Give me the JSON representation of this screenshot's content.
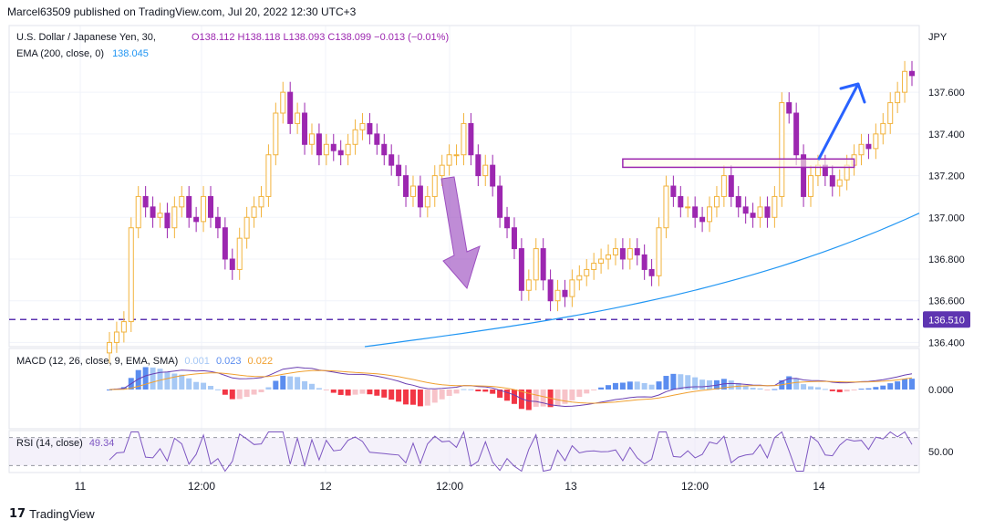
{
  "header": {
    "publisher": "Marcel63509 published on TradingView.com, Jul 20, 2022 12:30 UTC+3"
  },
  "footer": {
    "brand": "TradingView"
  },
  "legend": {
    "symbol": "U.S. Dollar / Japanese Yen, 30,",
    "ohlc": "O138.112  H138.118  L138.093  C138.099  −0.013 (−0.01%)",
    "ema_label": "EMA (200, close, 0)",
    "ema_value": "138.045",
    "macd_label": "MACD (12, 26, close, 9, EMA, SMA)",
    "macd_values": [
      "0.001",
      "0.023",
      "0.022"
    ],
    "rsi_label": "RSI (14, close)",
    "rsi_value": "49.34"
  },
  "colors": {
    "up": "#f2b33c",
    "down": "#9c27b0",
    "ema": "#2196f3",
    "dashed_level": "#5e35b1",
    "macd_pos_strong": "#5b8def",
    "macd_pos_weak": "#a6c8f5",
    "macd_neg_strong": "#f23645",
    "macd_neg_weak": "#f7c3c9",
    "macd_line": "#6a3fb1",
    "signal_line": "#f0a030",
    "rsi_line": "#7e57c2",
    "arrow_purple": "#9c4fc0",
    "arrow_blue": "#2962ff"
  },
  "chart_data": {
    "type": "candlestick",
    "title": "U.S. Dollar / Japanese Yen, 30",
    "currency": "JPY",
    "price_axis": {
      "ylim": [
        136.38,
        137.92
      ],
      "ticks": [
        "137.600",
        "137.400",
        "137.200",
        "137.000",
        "136.800",
        "136.600",
        "136.400"
      ]
    },
    "x_ticks": [
      "11",
      "12:00",
      "12",
      "12:00",
      "13",
      "12:00",
      "14"
    ],
    "level_label": "136.510",
    "level_value": 136.51,
    "macd_tick": "0.000",
    "rsi_tick": "50.00",
    "candles_close": [
      136.4,
      136.45,
      136.5,
      136.95,
      137.1,
      137.05,
      137.0,
      137.02,
      136.95,
      137.05,
      137.1,
      137.0,
      136.98,
      137.1,
      137.0,
      136.95,
      136.8,
      136.75,
      136.9,
      137.0,
      137.05,
      137.1,
      137.3,
      137.5,
      137.6,
      137.45,
      137.5,
      137.35,
      137.4,
      137.3,
      137.35,
      137.32,
      137.3,
      137.35,
      137.42,
      137.45,
      137.4,
      137.35,
      137.3,
      137.25,
      137.2,
      137.1,
      137.15,
      137.05,
      137.1,
      137.2,
      137.25,
      137.3,
      137.3,
      137.45,
      137.3,
      137.2,
      137.25,
      137.15,
      137.0,
      136.95,
      136.85,
      136.65,
      136.7,
      136.85,
      136.7,
      136.6,
      136.65,
      136.62,
      136.7,
      136.72,
      136.75,
      136.78,
      136.8,
      136.82,
      136.85,
      136.8,
      136.85,
      136.82,
      136.75,
      136.72,
      136.95,
      137.15,
      137.1,
      137.05,
      137.05,
      137.0,
      136.98,
      137.05,
      137.1,
      137.2,
      137.1,
      137.05,
      137.02,
      137.0,
      137.05,
      137.0,
      137.1,
      137.55,
      137.5,
      137.3,
      137.1,
      137.2,
      137.25,
      137.2,
      137.15,
      137.18,
      137.25,
      137.3,
      137.35,
      137.33,
      137.4,
      137.45,
      137.55,
      137.6,
      137.7,
      137.68
    ],
    "ema_start": 136.38,
    "ema_end": 137.02,
    "rsi_ylim": [
      20,
      80
    ],
    "rsi_band": [
      30,
      70
    ]
  },
  "annotations": {
    "zone_low": 137.24,
    "zone_high": 137.28,
    "zone_from_candle": 71,
    "zone_to_candle": 103
  }
}
